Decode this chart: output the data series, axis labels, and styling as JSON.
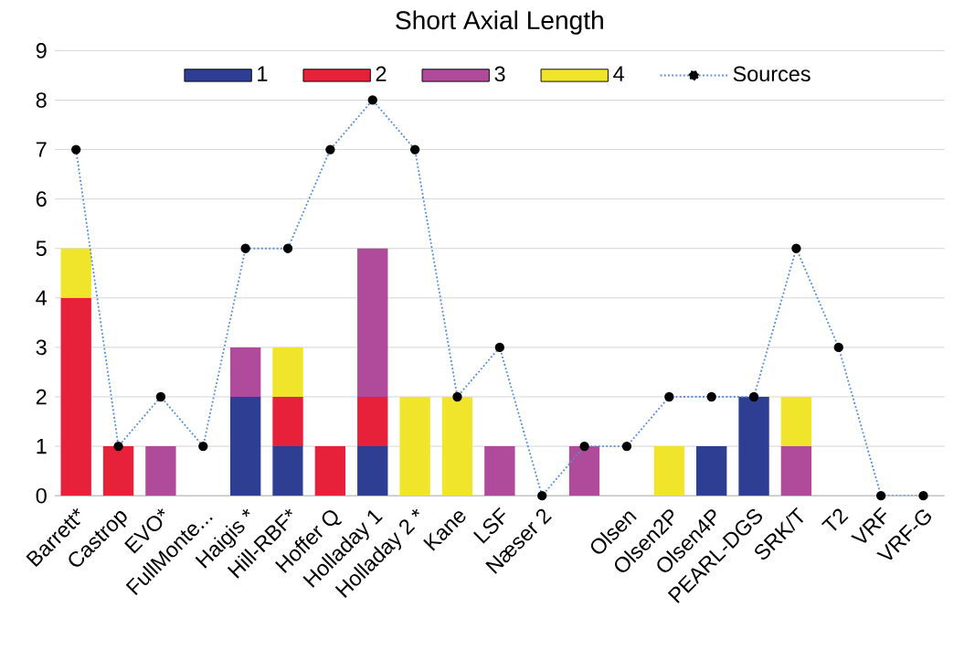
{
  "chart_data": {
    "type": "bar",
    "title": "Short Axial Length",
    "stacked": true,
    "categories": [
      "Barrett*",
      "Castrop",
      "EVO*",
      "FullMonte...",
      "Haigis *",
      "Hill-RBF*",
      "Hoffer Q",
      "Holladay 1",
      "Holladay 2 *",
      "Kane",
      "LSF",
      "Næser 2",
      null,
      "Olsen",
      "Olsen2P",
      "Olsen4P",
      "PEARL-DGS",
      "SRK/T",
      "T2",
      "VRF",
      "VRF-G"
    ],
    "series": [
      {
        "name": "1",
        "color": "#2e3e93",
        "values": [
          0,
          0,
          0,
          0,
          2,
          1,
          0,
          1,
          0,
          0,
          0,
          0,
          0,
          0,
          0,
          1,
          2,
          0,
          0,
          0,
          0
        ]
      },
      {
        "name": "2",
        "color": "#e8213a",
        "values": [
          4,
          1,
          0,
          0,
          0,
          1,
          1,
          1,
          0,
          0,
          0,
          0,
          0,
          0,
          0,
          0,
          0,
          0,
          0,
          0,
          0
        ]
      },
      {
        "name": "3",
        "color": "#b04a9b",
        "values": [
          0,
          0,
          1,
          0,
          1,
          0,
          0,
          3,
          0,
          0,
          1,
          0,
          1,
          0,
          0,
          0,
          0,
          1,
          0,
          0,
          0
        ]
      },
      {
        "name": "4",
        "color": "#f0e52a",
        "values": [
          1,
          0,
          0,
          0,
          0,
          1,
          0,
          0,
          2,
          2,
          0,
          0,
          0,
          0,
          1,
          0,
          0,
          1,
          0,
          0,
          0
        ]
      },
      {
        "name": "Sources",
        "type": "line",
        "color": "#5b8fd4",
        "marker": "circle",
        "line_style": "dotted",
        "values": [
          7,
          1,
          2,
          1,
          5,
          5,
          7,
          8,
          7,
          2,
          3,
          0,
          1,
          1,
          2,
          2,
          2,
          5,
          3,
          0,
          0
        ]
      }
    ],
    "ylim": [
      0,
      9
    ],
    "yticks": [
      0,
      1,
      2,
      3,
      4,
      5,
      6,
      7,
      8,
      9
    ],
    "grid": "y",
    "legend": "top"
  }
}
